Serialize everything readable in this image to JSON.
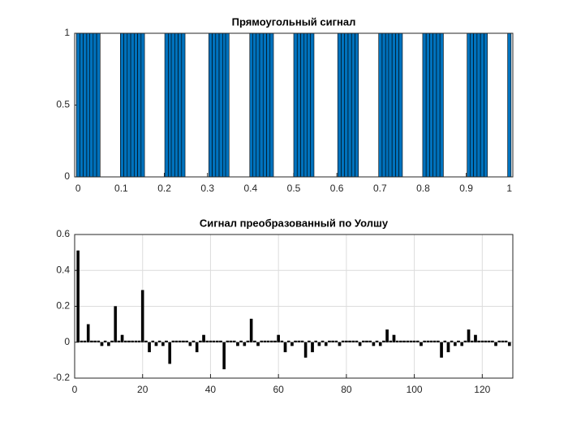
{
  "chart_data": [
    {
      "type": "bar",
      "title": "Прямоугольный сигнал",
      "color": "#0072bd",
      "grid": false,
      "x": [
        0,
        0.008,
        0.016,
        0.024,
        0.031,
        0.039,
        0.047,
        0.055,
        0.063,
        0.071,
        0.079,
        0.087,
        0.094,
        0.102,
        0.11,
        0.118,
        0.126,
        0.134,
        0.142,
        0.15,
        0.157,
        0.165,
        0.173,
        0.181,
        0.189,
        0.197,
        0.205,
        0.213,
        0.22,
        0.228,
        0.236,
        0.244,
        0.252,
        0.26,
        0.268,
        0.276,
        0.283,
        0.291,
        0.299,
        0.307,
        0.315,
        0.323,
        0.331,
        0.339,
        0.346,
        0.354,
        0.362,
        0.37,
        0.378,
        0.386,
        0.394,
        0.402,
        0.409,
        0.417,
        0.425,
        0.433,
        0.441,
        0.449,
        0.457,
        0.465,
        0.472,
        0.48,
        0.488,
        0.496,
        0.504,
        0.512,
        0.52,
        0.528,
        0.535,
        0.543,
        0.551,
        0.559,
        0.567,
        0.575,
        0.583,
        0.591,
        0.598,
        0.606,
        0.614,
        0.622,
        0.63,
        0.638,
        0.646,
        0.654,
        0.661,
        0.669,
        0.677,
        0.685,
        0.693,
        0.701,
        0.709,
        0.717,
        0.724,
        0.732,
        0.74,
        0.748,
        0.756,
        0.764,
        0.772,
        0.78,
        0.787,
        0.795,
        0.803,
        0.811,
        0.819,
        0.827,
        0.835,
        0.843,
        0.85,
        0.858,
        0.866,
        0.874,
        0.882,
        0.89,
        0.898,
        0.906,
        0.913,
        0.921,
        0.929,
        0.937,
        0.945,
        0.953,
        0.961,
        0.969,
        0.976,
        0.984,
        0.992,
        1
      ],
      "values": [
        1,
        1,
        1,
        1,
        1,
        1,
        1,
        0,
        0,
        0,
        0,
        0,
        0,
        1,
        1,
        1,
        1,
        1,
        1,
        1,
        0,
        0,
        0,
        0,
        0,
        0,
        1,
        1,
        1,
        1,
        1,
        1,
        0,
        0,
        0,
        0,
        0,
        0,
        0,
        1,
        1,
        1,
        1,
        1,
        1,
        0,
        0,
        0,
        0,
        0,
        0,
        1,
        1,
        1,
        1,
        1,
        1,
        1,
        0,
        0,
        0,
        0,
        0,
        0,
        1,
        1,
        1,
        1,
        1,
        1,
        0,
        0,
        0,
        0,
        0,
        0,
        0,
        1,
        1,
        1,
        1,
        1,
        1,
        0,
        0,
        0,
        0,
        0,
        0,
        1,
        1,
        1,
        1,
        1,
        1,
        1,
        0,
        0,
        0,
        0,
        0,
        0,
        1,
        1,
        1,
        1,
        1,
        1,
        0,
        0,
        0,
        0,
        0,
        0,
        0,
        1,
        1,
        1,
        1,
        1,
        1,
        0,
        0,
        0,
        0,
        0,
        0,
        1
      ],
      "xlim": [
        -0.008,
        1.008
      ],
      "xticks": [
        0,
        0.1,
        0.2,
        0.3,
        0.4,
        0.5,
        0.6,
        0.7,
        0.8,
        0.9,
        1
      ],
      "ylim": [
        0,
        1
      ],
      "yticks": [
        0,
        0.5,
        1
      ]
    },
    {
      "type": "bar",
      "title": "Сигнал преобразованный по Уолшу",
      "color": "#000000",
      "grid": true,
      "x": [
        1,
        2,
        3,
        4,
        5,
        6,
        7,
        8,
        9,
        10,
        11,
        12,
        13,
        14,
        15,
        16,
        17,
        18,
        19,
        20,
        21,
        22,
        23,
        24,
        25,
        26,
        27,
        28,
        29,
        30,
        31,
        32,
        33,
        34,
        35,
        36,
        37,
        38,
        39,
        40,
        41,
        42,
        43,
        44,
        45,
        46,
        47,
        48,
        49,
        50,
        51,
        52,
        53,
        54,
        55,
        56,
        57,
        58,
        59,
        60,
        61,
        62,
        63,
        64,
        65,
        66,
        67,
        68,
        69,
        70,
        71,
        72,
        73,
        74,
        75,
        76,
        77,
        78,
        79,
        80,
        81,
        82,
        83,
        84,
        85,
        86,
        87,
        88,
        89,
        90,
        91,
        92,
        93,
        94,
        95,
        96,
        97,
        98,
        99,
        100,
        101,
        102,
        103,
        104,
        105,
        106,
        107,
        108,
        109,
        110,
        111,
        112,
        113,
        114,
        115,
        116,
        117,
        118,
        119,
        120,
        121,
        122,
        123,
        124,
        125,
        126,
        127,
        128
      ],
      "values": [
        0.51,
        0.008,
        0.008,
        0.1,
        0.008,
        0.008,
        0.008,
        -0.02,
        0.008,
        -0.02,
        0.008,
        0.2,
        0.008,
        0.04,
        0.008,
        0.008,
        0.008,
        0.008,
        0.008,
        0.29,
        0.008,
        -0.055,
        0.008,
        -0.02,
        0.008,
        -0.02,
        0.008,
        -0.12,
        0.008,
        0.008,
        0.008,
        0.008,
        0.008,
        -0.02,
        0.008,
        -0.055,
        0.008,
        0.04,
        0.008,
        0.008,
        0.008,
        0.008,
        0.008,
        -0.15,
        0.008,
        0.008,
        0.008,
        -0.02,
        0.008,
        -0.02,
        0.008,
        0.13,
        0.008,
        -0.02,
        0.008,
        0.008,
        0.008,
        0.008,
        0.008,
        0.04,
        0.008,
        -0.055,
        0.008,
        -0.02,
        0.008,
        0.008,
        0.008,
        -0.085,
        0.008,
        -0.055,
        0.008,
        -0.02,
        0.008,
        -0.02,
        0.008,
        0.008,
        0.008,
        -0.02,
        0.008,
        0.008,
        0.008,
        0.008,
        0.008,
        -0.02,
        0.008,
        0.008,
        0.008,
        -0.02,
        0.008,
        -0.02,
        0.008,
        0.07,
        0.008,
        0.04,
        0.008,
        0.008,
        0.008,
        0.008,
        0.008,
        0.008,
        0.008,
        -0.02,
        0.008,
        0.008,
        0.008,
        0.008,
        0.008,
        -0.085,
        0.008,
        -0.055,
        0.008,
        -0.02,
        0.008,
        -0.02,
        0.008,
        0.07,
        0.008,
        0.04,
        0.008,
        0.008,
        0.008,
        0.008,
        0.008,
        -0.02,
        0.008,
        0.008,
        0.008,
        -0.02
      ],
      "xlim": [
        0,
        129
      ],
      "xticks": [
        0,
        20,
        40,
        60,
        80,
        100,
        120
      ],
      "ylim": [
        -0.2,
        0.6
      ],
      "yticks": [
        -0.2,
        0,
        0.2,
        0.4,
        0.6
      ]
    }
  ]
}
